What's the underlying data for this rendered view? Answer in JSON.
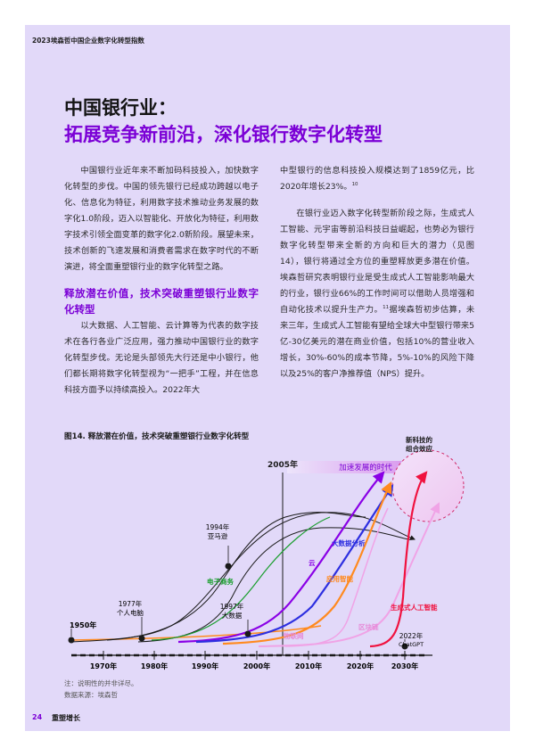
{
  "header": {
    "title": "2023埃森哲中国企业数字化转型指数"
  },
  "title": {
    "line1": "中国银行业：",
    "line2": "拓展竞争新前沿，深化银行数字化转型"
  },
  "left_column": {
    "p1": "中国银行业近年来不断加码科技投入，加快数字化转型的步伐。中国的领先银行已经成功跨越以电子化、信息化为特征，利用数字技术推动业务发展的数字化1.0阶段，迈入以智能化、开放化为特征，利用数字技术引领全面变革的数字化2.0新阶段。展望未来，技术创新的飞速发展和消费者需求在数字时代的不断演进，将全面重塑银行业的数字化转型之路。",
    "subheading": "释放潜在价值，技术突破重塑银行业数字化转型",
    "p2": "以大数据、人工智能、云计算等为代表的数字技术在各行各业广泛应用，强力推动中国银行业的数字化转型步伐。无论是头部领先大行还是中小银行，他们都长期将数字化转型视为“一把手”工程，并在信息科技方面予以持续高投入。2022年大"
  },
  "right_column": {
    "p1": "中型银行的信息科技投入规模达到了1859亿元，比2020年增长23%。",
    "p1_sup": "10",
    "p2": "在银行业迈入数字化转型新阶段之际，生成式人工智能、元宇宙等前沿科技日益崛起，也势必为银行数字化转型带来全新的方向和巨大的潜力（见图14），银行将通过全方位的重塑释放更多潜在价值。埃森哲研究表明银行业是受生成式人工智能影响最大的行业，银行业66%的工作时间可以借助人员增强和自动化技术以提升生产力。",
    "p2_sup": "11",
    "p2b": "据埃森哲初步估算，未来三年，生成式人工智能有望给全球大中型银行带来5亿-30亿美元的潜在商业价值，包括10%的营业收入增长，30%-60%的成本节降，5%-10%的风险下降以及25%的客户净推荐值（NPS）提升。"
  },
  "figure": {
    "title": "图14. 释放潜在价值，技术突破重塑银行业数字化转型",
    "axis_labels": [
      "1970年",
      "1980年",
      "1990年",
      "2000年",
      "2010年",
      "2020年",
      "2030年"
    ],
    "marker_2005": "2005年",
    "arrow_label": "加速发展的时代",
    "bubble_label_1": "新科技的",
    "bubble_label_2": "组合效应",
    "label_1950": "1950年",
    "label_1977_a": "1977年",
    "label_1977_b": "个人电脑",
    "label_1994_a": "1994年",
    "label_1994_b": "亚马逊",
    "label_1997_a": "1997年",
    "label_1997_b": "大数据",
    "label_2022_a": "2022年",
    "label_2022_b": "ChatGPT",
    "series_labels": {
      "ecommerce": "电子商务",
      "cloud": "云",
      "bigdata": "大数据分析",
      "ai_app": "应用智能",
      "iot": "物联网",
      "blockchain": "区块链",
      "genai": "生成式人工智能"
    },
    "colors": {
      "purple": "#8a00e6",
      "blue": "#2d2fe0",
      "orange": "#ff8a1f",
      "pink": "#f0a3e6",
      "red": "#f0123f",
      "green": "#1a9e2e",
      "black": "#1a1a1a"
    }
  },
  "notes": {
    "line1": "注：说明性的并非详尽。",
    "line2": "数据来源：埃森哲"
  },
  "footer": {
    "page_number": "24",
    "section": "重塑增长"
  }
}
